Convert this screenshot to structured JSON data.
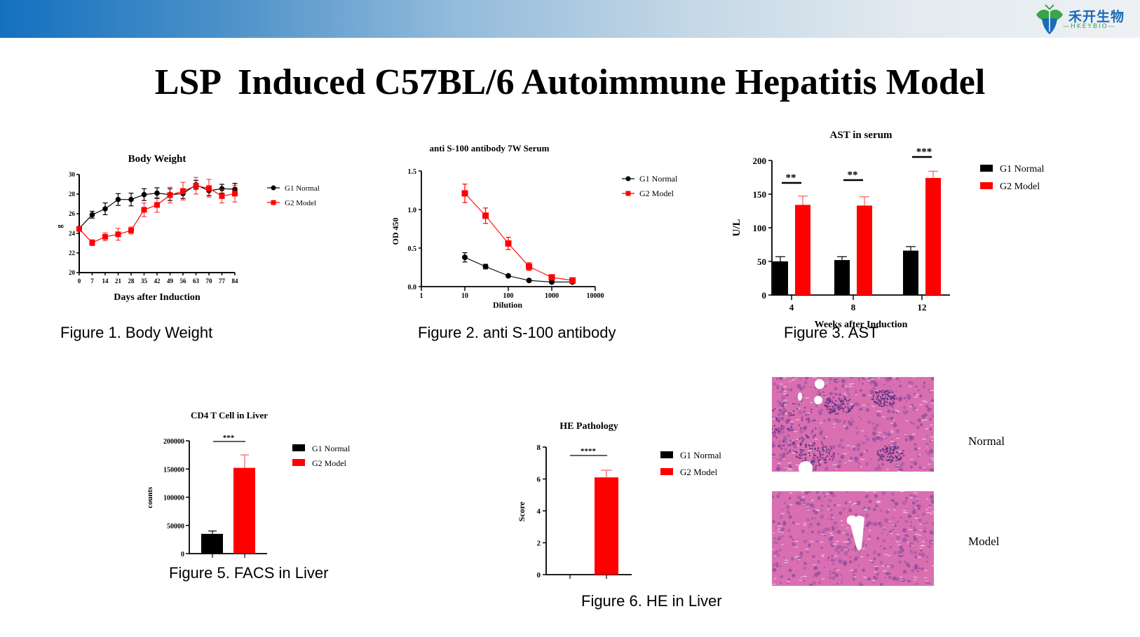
{
  "header": {
    "logo_text": "禾开生物",
    "logo_sub": "—HKEYBIO—",
    "banner_colors": [
      "#1470bf",
      "#eef1f4"
    ]
  },
  "title": "LSP  Induced C57BL/6 Autoimmune Hepatitis Model",
  "colors": {
    "normal": "#000000",
    "model": "#ff0000"
  },
  "legend": {
    "g1": "G1 Normal",
    "g2": "G2 Model"
  },
  "captions": {
    "fig1": "Figure 1. Body Weight",
    "fig2": "Figure 2. anti S-100 antibody",
    "fig3": "Figure 3. AST",
    "fig5": "Figure 5. FACS in Liver",
    "fig6": "Figure 6. HE in Liver"
  },
  "histology": {
    "normal_label": "Normal",
    "model_label": "Model"
  },
  "chart_data": [
    {
      "id": "body_weight",
      "type": "line",
      "title": "Body  Weight",
      "xlabel": "Days after Induction",
      "ylabel": "g",
      "x": [
        0,
        7,
        14,
        21,
        28,
        35,
        42,
        49,
        56,
        63,
        70,
        77,
        84
      ],
      "ylim": [
        20,
        30
      ],
      "yticks": [
        20,
        22,
        24,
        26,
        28,
        30
      ],
      "series": [
        {
          "name": "G1 Normal",
          "values": [
            24.5,
            25.9,
            26.5,
            27.45,
            27.45,
            27.95,
            28.1,
            27.95,
            28.05,
            28.95,
            28.35,
            28.55,
            28.5
          ],
          "err": [
            0.2,
            0.35,
            0.6,
            0.6,
            0.65,
            0.6,
            0.55,
            0.6,
            0.5,
            0.45,
            0.5,
            0.45,
            0.6
          ]
        },
        {
          "name": "G2 Model",
          "values": [
            24.45,
            23.05,
            23.65,
            23.9,
            24.3,
            26.4,
            26.9,
            27.9,
            28.3,
            28.85,
            28.6,
            27.8,
            28.05
          ],
          "err": [
            0.2,
            0.3,
            0.4,
            0.6,
            0.35,
            0.7,
            0.75,
            0.8,
            0.9,
            0.85,
            0.9,
            0.7,
            0.85
          ]
        }
      ],
      "legend_position": "right"
    },
    {
      "id": "anti_s100",
      "type": "line",
      "title": "anti S-100 antibody  7W Serum",
      "xlabel": "Dilution",
      "ylabel": "OD 450",
      "xscale": "log",
      "xticks": [
        1,
        10,
        100,
        1000,
        10000
      ],
      "x": [
        10,
        30,
        100,
        300,
        1000,
        3000
      ],
      "ylim": [
        0,
        1.5
      ],
      "yticks": [
        0.0,
        0.5,
        1.0,
        1.5
      ],
      "series": [
        {
          "name": "G1 Normal",
          "values": [
            0.38,
            0.26,
            0.14,
            0.08,
            0.06,
            0.06
          ],
          "err": [
            0.06,
            0.03,
            0.01,
            0.01,
            0.01,
            0.01
          ]
        },
        {
          "name": "G2 Model",
          "values": [
            1.21,
            0.92,
            0.56,
            0.26,
            0.12,
            0.08
          ],
          "err": [
            0.12,
            0.1,
            0.08,
            0.05,
            0.02,
            0.01
          ]
        }
      ],
      "legend_position": "right"
    },
    {
      "id": "ast",
      "type": "bar",
      "title": "AST in serum",
      "xlabel": "Weeks after Induction",
      "ylabel": "U/L",
      "categories": [
        "4",
        "8",
        "12"
      ],
      "ylim": [
        0,
        200
      ],
      "yticks": [
        0,
        50,
        100,
        150,
        200
      ],
      "series": [
        {
          "name": "G1 Normal",
          "values": [
            50,
            52,
            66
          ],
          "err": [
            7,
            5,
            6
          ]
        },
        {
          "name": "G2 Model",
          "values": [
            134,
            133,
            174
          ],
          "err": [
            13,
            13,
            10
          ]
        }
      ],
      "significance": [
        "**",
        "**",
        "***"
      ],
      "legend_position": "right"
    },
    {
      "id": "cd4",
      "type": "bar",
      "title": "CD4 T Cell in Liver",
      "xlabel": "",
      "ylabel": "counts",
      "categories": [
        "G1 Normal",
        "G2 Model"
      ],
      "ylim": [
        0,
        200000
      ],
      "yticks": [
        0,
        50000,
        100000,
        150000,
        200000
      ],
      "values": [
        35000,
        152000
      ],
      "err": [
        5000,
        23000
      ],
      "significance": "***",
      "legend_position": "right"
    },
    {
      "id": "he",
      "type": "bar",
      "title": "HE Pathology",
      "xlabel": "",
      "ylabel": "Score",
      "categories": [
        "G1 Normal",
        "G2 Model"
      ],
      "ylim": [
        0,
        8
      ],
      "yticks": [
        0,
        2,
        4,
        6,
        8
      ],
      "values": [
        0,
        6.1
      ],
      "err": [
        0,
        0.45
      ],
      "significance": "****",
      "legend_position": "right"
    }
  ]
}
